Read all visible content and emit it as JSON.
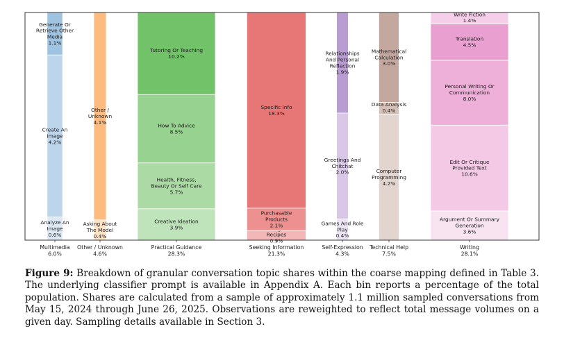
{
  "chart_data": {
    "type": "bar",
    "stacked": true,
    "grid": false,
    "legend": "none",
    "title": "",
    "xlabel": "",
    "ylabel": "",
    "ylim": [
      0,
      100
    ],
    "categories": [
      {
        "label": "Multimedia",
        "share": "6.0%",
        "total": 6.0,
        "width_rel": 1.0,
        "segments": [
          {
            "label": "Analyze An Image",
            "value": 0.6,
            "color": "#dce9f4"
          },
          {
            "label": "Create An Image",
            "value": 4.2,
            "color": "#bcd5ea"
          },
          {
            "label": "Generate Or Retrieve Other Media",
            "value": 1.1,
            "color": "#9fc3e0"
          }
        ]
      },
      {
        "label": "Other / Unknown",
        "share": "4.6%",
        "total": 4.6,
        "width_rel": 0.8,
        "segments": [
          {
            "label": "Asking About The Model",
            "value": 0.4,
            "color": "#fde2c4"
          },
          {
            "label": "Other / Unknown",
            "value": 4.1,
            "color": "#fdbb7f"
          }
        ]
      },
      {
        "label": "Practical Guidance",
        "share": "28.3%",
        "total": 28.3,
        "width_rel": 5.0,
        "segments": [
          {
            "label": "Creative Ideation",
            "value": 3.9,
            "color": "#bfe3bb"
          },
          {
            "label": "Health, Fitness, Beauty Or Self Care",
            "value": 5.7,
            "color": "#abdaa4"
          },
          {
            "label": "How To Advice",
            "value": 8.5,
            "color": "#98d290"
          },
          {
            "label": "Tutoring Or Teaching",
            "value": 10.2,
            "color": "#72c26a"
          }
        ]
      },
      {
        "label": "Seeking Information",
        "share": "21.3%",
        "total": 21.3,
        "width_rel": 3.8,
        "segments": [
          {
            "label": "Cooking And Recipes",
            "value": 0.9,
            "color": "#f2b7b6"
          },
          {
            "label": "Purchasable Products",
            "value": 2.1,
            "color": "#ec9190"
          },
          {
            "label": "Specific Info",
            "value": 18.3,
            "color": "#e67776"
          }
        ]
      },
      {
        "label": "Self-Expression",
        "share": "4.3%",
        "total": 4.3,
        "width_rel": 0.75,
        "segments": [
          {
            "label": "Games And Role Play",
            "value": 0.4,
            "color": "#ece4f3"
          },
          {
            "label": "Greetings And Chitchat",
            "value": 2.0,
            "color": "#d8c7e6"
          },
          {
            "label": "Relationships And Personal Reflection",
            "value": 1.9,
            "color": "#b89cd2"
          }
        ]
      },
      {
        "label": "Technical Help",
        "share": "7.5%",
        "total": 7.5,
        "width_rel": 1.3,
        "segments": [
          {
            "label": "Computer Programming",
            "value": 4.2,
            "color": "#e2d4cf"
          },
          {
            "label": "Data Analysis",
            "value": 0.4,
            "color": "#d6c1b9"
          },
          {
            "label": "Mathematical Calculation",
            "value": 3.0,
            "color": "#c4a89f"
          }
        ]
      },
      {
        "label": "Writing",
        "share": "28.1%",
        "total": 28.1,
        "width_rel": 5.0,
        "segments": [
          {
            "label": "Argument Or Summary Generation",
            "value": 3.6,
            "color": "#f8e3f1"
          },
          {
            "label": "Edit Or Critique Provided Text",
            "value": 10.6,
            "color": "#f4c9e5"
          },
          {
            "label": "Personal Writing Or Communication",
            "value": 8.0,
            "color": "#eeafd8"
          },
          {
            "label": "Translation",
            "value": 4.5,
            "color": "#ea9fd1"
          },
          {
            "label": "Write Fiction",
            "value": 1.4,
            "color": "#f5cfe9"
          }
        ]
      }
    ]
  },
  "caption": {
    "label": "Figure 9:",
    "text": " Breakdown of granular conversation topic shares within the coarse mapping defined in Table 3. The underlying classifier prompt is available in Appendix A. Each bin reports a percentage of the total population. Shares are calculated from a sample of approximately 1.1 million sampled conversations from May 15, 2024 through June 26, 2025. Observations are reweighted to reflect total message volumes on a given day. Sampling details available in Section 3."
  }
}
